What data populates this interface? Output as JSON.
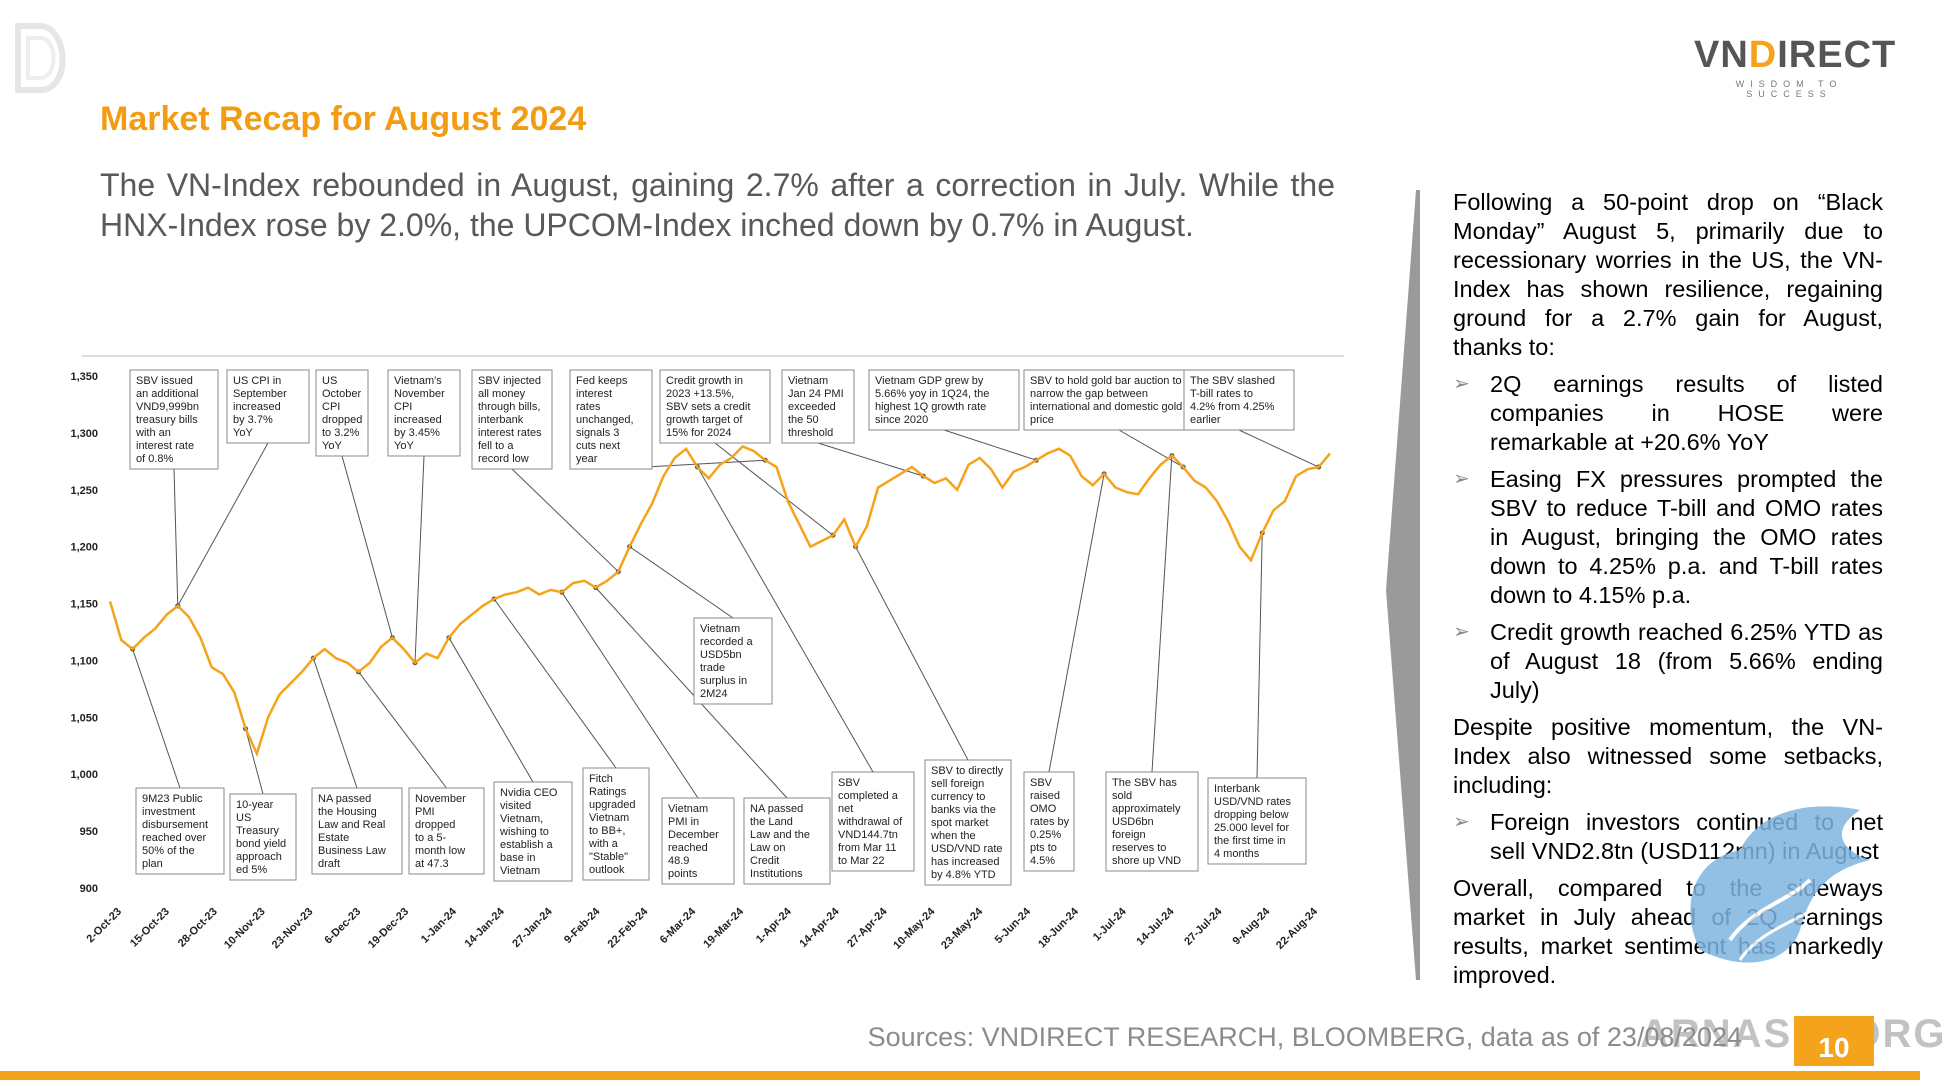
{
  "header": {
    "brand_name_prefix": "VN",
    "brand_name_d": "D",
    "brand_name_suffix": "IRECT",
    "tagline": "WISDOM TO SUCCESS",
    "corner_logo_icon": "vndirect-d-watermark-icon"
  },
  "title": "Market Recap for August 2024",
  "lead": "The VN-Index rebounded in August, gaining 2.7% after a correction in July. While the HNX-Index rose by 2.0%, the UPCOM-Index inched down by 0.7% in August.",
  "colors": {
    "accent": "#f39c12",
    "line": "#f5a31a",
    "text": "#595959"
  },
  "chart_data": {
    "type": "line",
    "series": [
      {
        "values": [
          1152,
          1118,
          1110,
          1120,
          1128,
          1140,
          1148,
          1138,
          1120,
          1094,
          1088,
          1072,
          1040,
          1018,
          1050,
          1070,
          1080,
          1090,
          1102,
          1110,
          1102,
          1098,
          1090,
          1098,
          1112,
          1120,
          1110,
          1098,
          1106,
          1102,
          1120,
          1132,
          1140,
          1148,
          1154,
          1158,
          1160,
          1164,
          1158,
          1162,
          1160,
          1168,
          1170,
          1164,
          1170,
          1178,
          1200,
          1220,
          1238,
          1262,
          1278,
          1286,
          1270,
          1260,
          1272,
          1278,
          1288,
          1284,
          1276,
          1270,
          1240,
          1220,
          1200,
          1205,
          1210,
          1224,
          1200,
          1218,
          1252,
          1258,
          1264,
          1270,
          1262,
          1256,
          1260,
          1250,
          1272,
          1278,
          1268,
          1252,
          1266,
          1270,
          1276,
          1282,
          1286,
          1280,
          1262,
          1254,
          1264,
          1252,
          1248,
          1246,
          1260,
          1272,
          1280,
          1270,
          1258,
          1252,
          1240,
          1222,
          1200,
          1188,
          1212,
          1232,
          1240,
          1262,
          1268,
          1270,
          1282
        ]
      }
    ],
    "xlabels": [
      "2-Oct-23",
      "15-Oct-23",
      "28-Oct-23",
      "10-Nov-23",
      "23-Nov-23",
      "6-Dec-23",
      "19-Dec-23",
      "1-Jan-24",
      "14-Jan-24",
      "27-Jan-24",
      "9-Feb-24",
      "22-Feb-24",
      "6-Mar-24",
      "19-Mar-24",
      "1-Apr-24",
      "14-Apr-24",
      "27-Apr-24",
      "10-May-24",
      "23-May-24",
      "5-Jun-24",
      "18-Jun-24",
      "1-Jul-24",
      "14-Jul-24",
      "27-Jul-24",
      "9-Aug-24",
      "22-Aug-24"
    ],
    "yticks": [
      "900",
      "950",
      "1,000",
      "1,050",
      "1,100",
      "1,150",
      "1,200",
      "1,250",
      "1,300",
      "1,350"
    ],
    "ylim": [
      900,
      1350
    ],
    "grid": false,
    "annotations_top": [
      [
        "SBV issued",
        "an additional",
        "VND9,999bn",
        "treasury bills",
        "with an",
        "interest rate",
        "of 0.8%"
      ],
      [
        "US CPI in",
        "September",
        "increased",
        "by 3.7%",
        "YoY"
      ],
      [
        "US",
        "October",
        "CPI",
        "dropped",
        "to 3.2%",
        "YoY"
      ],
      [
        "Vietnam's",
        "November",
        "CPI",
        "increased",
        "by 3.45%",
        "YoY"
      ],
      [
        "SBV injected",
        "all money",
        "through bills,",
        "interbank",
        "interest rates",
        "fell to a",
        "record low"
      ],
      [
        "Fed keeps",
        "interest",
        "rates",
        "unchanged,",
        "signals 3",
        "cuts next",
        "year"
      ],
      [
        "Credit growth in",
        "2023 +13.5%,",
        "SBV sets a credit",
        "growth target of",
        "15% for 2024"
      ],
      [
        "Vietnam",
        "Jan 24 PMI",
        "exceeded",
        "the 50",
        "threshold"
      ],
      [
        "Vietnam GDP grew by",
        "5.66% yoy in 1Q24, the",
        "highest 1Q growth rate",
        "since 2020"
      ],
      [
        "SBV to hold gold bar auction to",
        "narrow the gap between",
        "international and domestic gold",
        "price"
      ],
      [
        "The SBV slashed",
        "T-bill rates to",
        "4.2% from 4.25%",
        "earlier"
      ]
    ],
    "annotation_middle": [
      "Vietnam",
      "recorded a",
      "USD5bn",
      "trade",
      "surplus in",
      "2M24"
    ],
    "annotations_bottom": [
      [
        "9M23 Public",
        "investment",
        "disbursement",
        "reached over",
        "50% of the",
        "plan"
      ],
      [
        "10-year",
        "US",
        "Treasury",
        "bond yield",
        "approach",
        "ed 5%"
      ],
      [
        "NA passed",
        "the Housing",
        "Law and Real",
        "Estate",
        "Business Law",
        "draft"
      ],
      [
        "November",
        "PMI",
        "dropped",
        "to a 5-",
        "month low",
        "at 47.3"
      ],
      [
        "Nvidia CEO",
        "visited",
        "Vietnam,",
        "wishing to",
        "establish a",
        "base in",
        "Vietnam"
      ],
      [
        "Fitch",
        "Ratings",
        "upgraded",
        "Vietnam",
        "to BB+,",
        "with a",
        "\"Stable\"",
        "outlook"
      ],
      [
        "Vietnam",
        "PMI in",
        "December",
        "reached",
        "48.9",
        "points"
      ],
      [
        "NA passed",
        "the Land",
        "Law and the",
        "Law on",
        "Credit",
        "Institutions"
      ],
      [
        "SBV",
        "completed a",
        "net",
        "withdrawal of",
        "VND144.7tn",
        "from Mar 11",
        "to Mar 22"
      ],
      [
        "SBV to directly",
        "sell foreign",
        "currency to",
        "banks via the",
        "spot market",
        "when the",
        "USD/VND rate",
        "has increased",
        "by 4.8% YTD"
      ],
      [
        "SBV",
        "raised",
        "OMO",
        "rates by",
        "0.25%",
        "pts to",
        "4.5%"
      ],
      [
        "The SBV has",
        "sold",
        "approximately",
        "USD6bn",
        "foreign",
        "reserves to",
        "shore up VND"
      ],
      [
        "Interbank",
        "USD/VND rates",
        "dropping below",
        "25.000 level for",
        "the first time in",
        "4 months"
      ]
    ]
  },
  "right_panel": {
    "intro": "Following a 50-point drop on “Black Monday” August 5, primarily due to recessionary worries in the US, the VN-Index has shown resilience, regaining ground for a 2.7% gain for August, thanks to:",
    "bullets_a": [
      "2Q earnings results of listed companies in HOSE were remarkable at +20.6% YoY",
      "Easing FX pressures prompted the SBV to reduce T-bill and OMO rates in August, bringing the OMO rates down to 4.25% p.a. and T-bill rates down to 4.15% p.a.",
      "Credit growth reached 6.25% YTD as of August 18 (from 5.66% ending July)"
    ],
    "middle": "Despite positive momentum, the VN-Index also witnessed some setbacks, including:",
    "bullets_b": [
      "Foreign investors continued to net sell VND2.8tn (USD112mn) in August"
    ],
    "outro": "Overall, compared to the sideways market in July ahead of 2Q earnings results, market sentiment has markedly improved.",
    "bullet_icon": "arrow-bullet-icon"
  },
  "footer": {
    "sources": "Sources: VNDIRECT RESEARCH, BLOOMBERG, data as of 23/08/2024",
    "page_number": "10",
    "watermark": "ARNASIA.ORG",
    "watermark_icon": "griffin-watermark-icon"
  }
}
